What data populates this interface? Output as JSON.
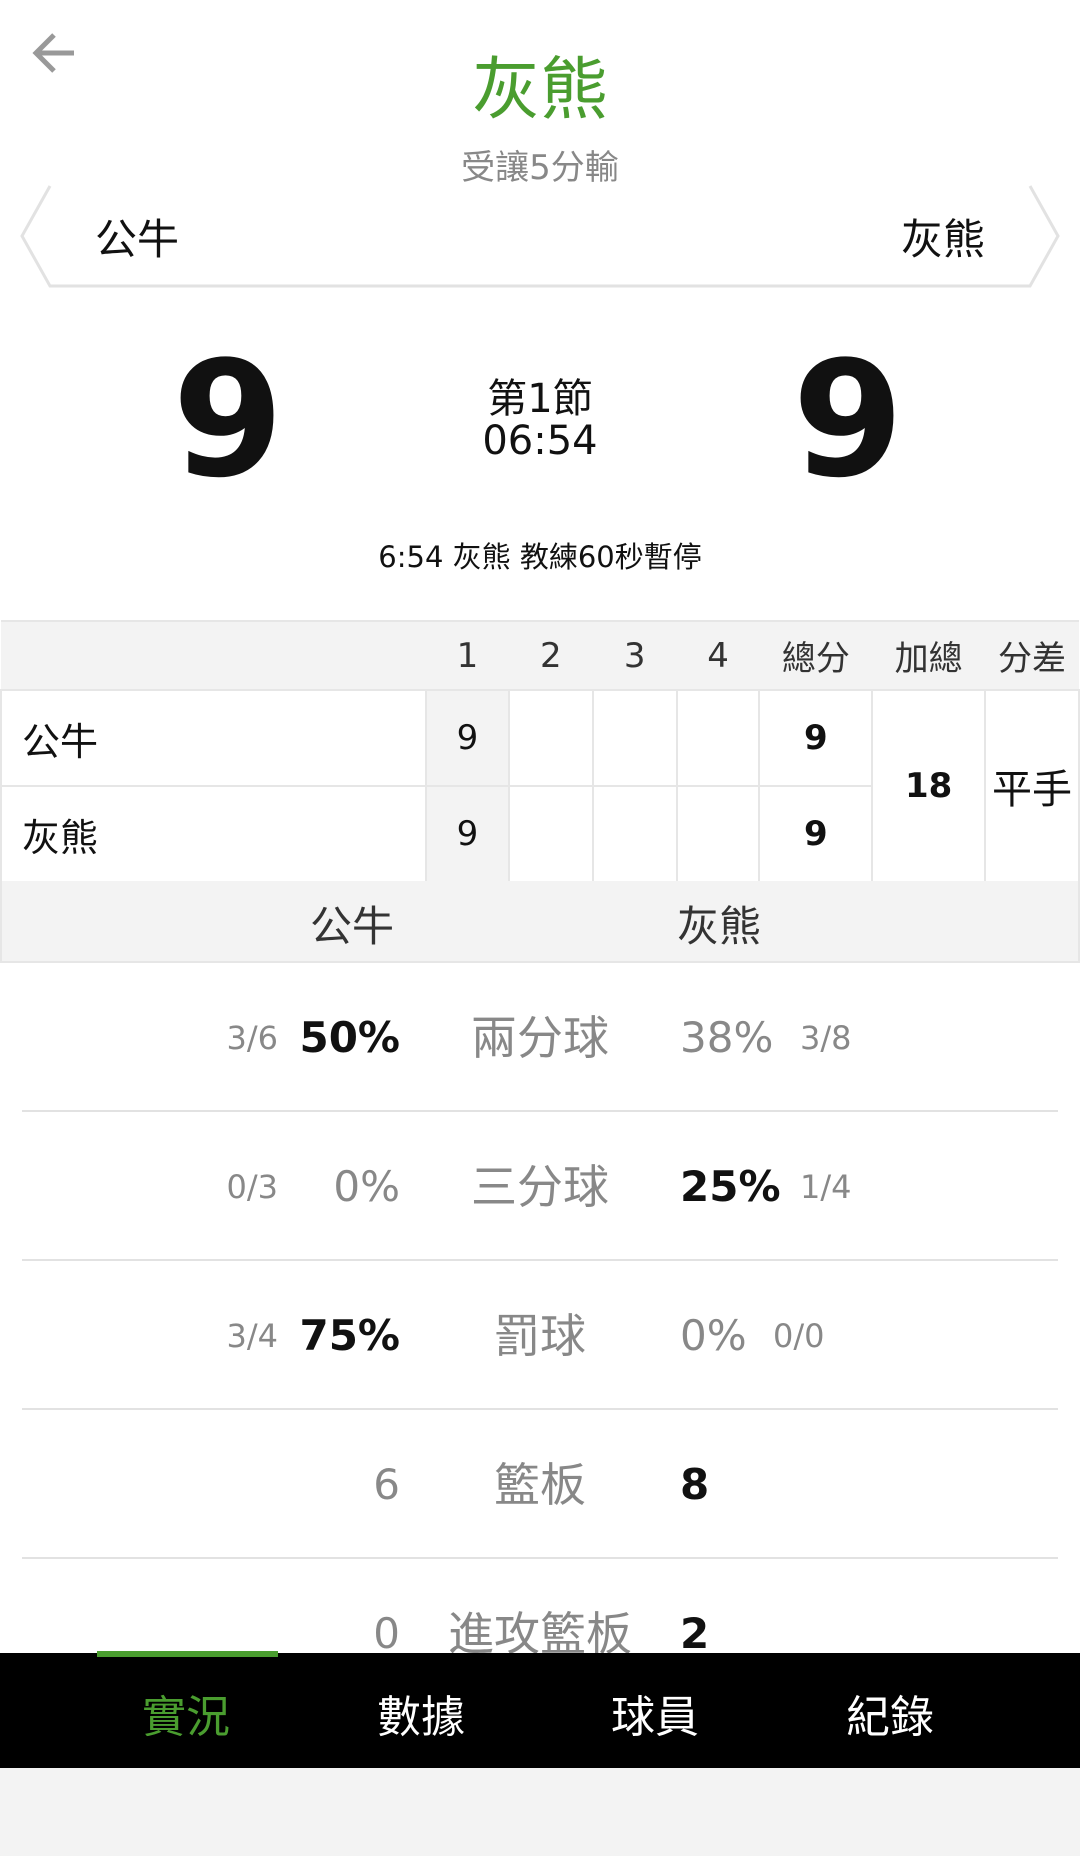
{
  "header": {
    "title": "灰熊",
    "subtitle": "受讓5分輸",
    "back_icon": "arrow-left-icon",
    "accent": "#4a9d2f"
  },
  "banner": {
    "left_team": "公牛",
    "right_team": "灰熊"
  },
  "scoreboard": {
    "home_score": "9",
    "away_score": "9",
    "period": "第1節",
    "clock": "06:54",
    "event": "6:54 灰熊  教練60秒暫停"
  },
  "box": {
    "headers": [
      "",
      "1",
      "2",
      "3",
      "4",
      "總分",
      "加總",
      "分差"
    ],
    "rows": [
      {
        "team": "公牛",
        "q": [
          "9",
          "",
          "",
          ""
        ],
        "total": "9"
      },
      {
        "team": "灰熊",
        "q": [
          "9",
          "",
          "",
          ""
        ],
        "total": "9"
      }
    ],
    "combined": "18",
    "diff": "平手"
  },
  "compare": {
    "left": "公牛",
    "right": "灰熊"
  },
  "stats": [
    {
      "label": "兩分球",
      "lf": "3/6",
      "lp": "50%",
      "rp": "38%",
      "rf": "3/8",
      "winner": "left"
    },
    {
      "label": "三分球",
      "lf": "0/3",
      "lp": "0%",
      "rp": "25%",
      "rf": "1/4",
      "winner": "right"
    },
    {
      "label": "罰球",
      "lf": "3/4",
      "lp": "75%",
      "rp": "0%",
      "rf": "0/0",
      "winner": "left"
    },
    {
      "label": "籃板",
      "lf": "",
      "lp": "6",
      "rp": "8",
      "rf": "",
      "winner": "right"
    },
    {
      "label": "進攻籃板",
      "lf": "",
      "lp": "0",
      "rp": "2",
      "rf": "",
      "winner": "right"
    }
  ],
  "nav": {
    "items": [
      "實況",
      "數據",
      "球員",
      "紀錄"
    ],
    "active": 0
  }
}
